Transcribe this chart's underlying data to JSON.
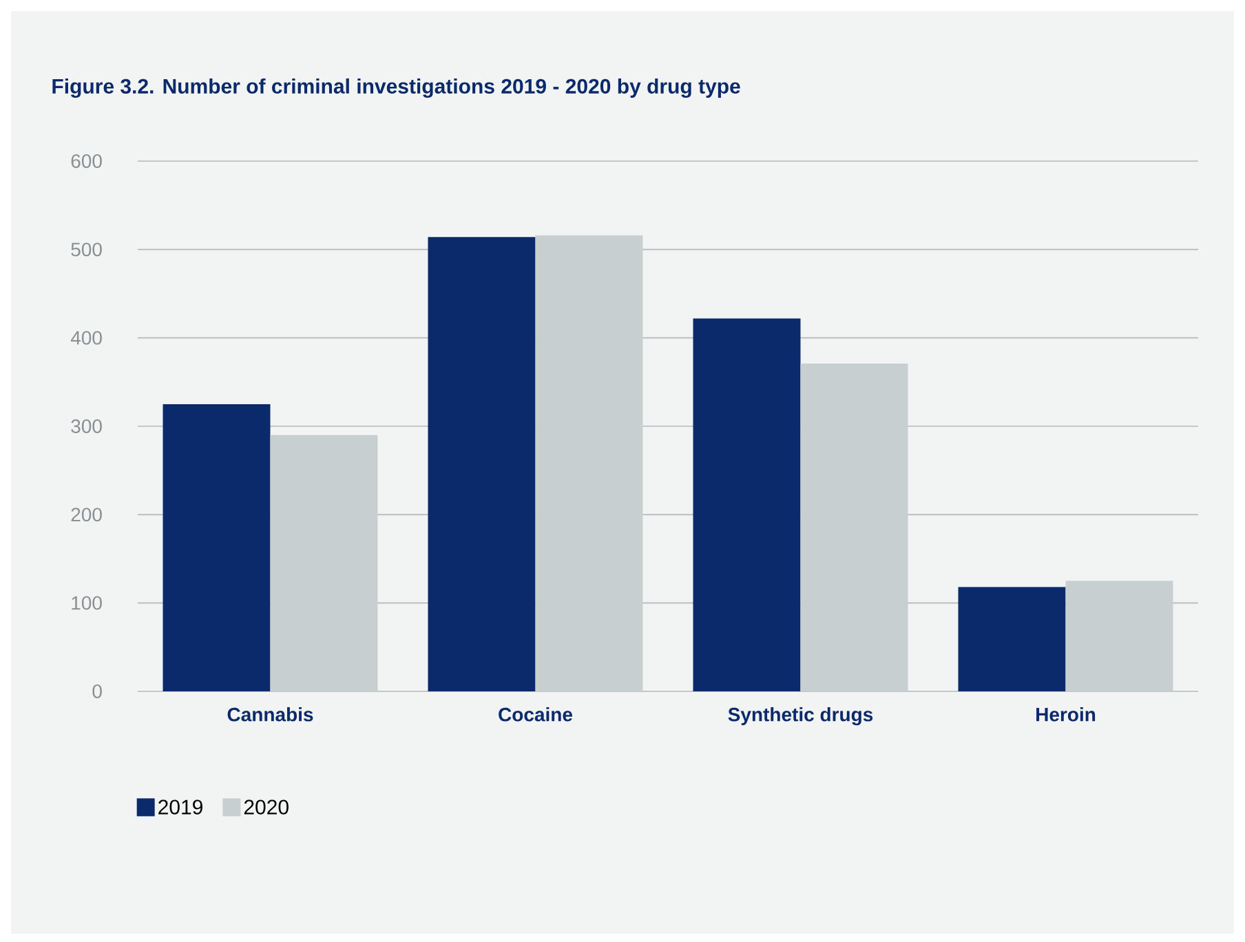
{
  "chart_data": {
    "type": "bar",
    "title": "Figure 3.2. Number of criminal investigations 2019 - 2020 by drug type",
    "categories": [
      "Cannabis",
      "Cocaine",
      "Synthetic drugs",
      "Heroin"
    ],
    "series": [
      {
        "name": "2019",
        "color": "#0b2a6b",
        "values": [
          325,
          514,
          422,
          118
        ]
      },
      {
        "name": "2020",
        "color": "#c8cfd1",
        "values": [
          290,
          516,
          371,
          125
        ]
      }
    ],
    "ylim": [
      0,
      600
    ],
    "yticks": [
      0,
      100,
      200,
      300,
      400,
      500,
      600
    ],
    "grid": "y",
    "legend": "bottom left"
  }
}
